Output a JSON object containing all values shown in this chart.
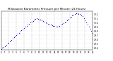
{
  "title": "Milwaukee Barometric Pressure per Minute (24 Hours)",
  "title_fontsize": 3.0,
  "background_color": "#ffffff",
  "plot_bg_color": "#ffffff",
  "dot_color": "#0000cc",
  "dot_size": 0.5,
  "grid_color": "#bbbbbb",
  "grid_dash_color": "#999999",
  "ylim": [
    29.35,
    30.28
  ],
  "xlim": [
    0,
    1440
  ],
  "yticks": [
    29.4,
    29.5,
    29.6,
    29.7,
    29.8,
    29.9,
    30.0,
    30.1,
    30.2
  ],
  "ytick_labels": [
    "29.4",
    "29.5",
    "29.6",
    "29.7",
    "29.8",
    "29.9",
    "30.0",
    "30.1",
    "30.2"
  ],
  "xtick_positions": [
    0,
    60,
    120,
    180,
    240,
    300,
    360,
    420,
    480,
    540,
    600,
    660,
    720,
    780,
    840,
    900,
    960,
    1020,
    1080,
    1140,
    1200,
    1260,
    1320,
    1380,
    1440
  ],
  "xtick_labels": [
    "0",
    "1",
    "2",
    "3",
    "4",
    "5",
    "6",
    "7",
    "8",
    "9",
    "10",
    "11",
    "12",
    "13",
    "14",
    "15",
    "16",
    "17",
    "18",
    "19",
    "20",
    "21",
    "22",
    "23",
    "24"
  ],
  "vgrid_positions": [
    120,
    240,
    360,
    480,
    600,
    720,
    840,
    960,
    1080,
    1200,
    1320
  ],
  "data_x": [
    0,
    20,
    40,
    60,
    80,
    100,
    120,
    140,
    160,
    180,
    200,
    220,
    240,
    260,
    280,
    300,
    320,
    340,
    360,
    380,
    400,
    420,
    440,
    460,
    480,
    500,
    520,
    540,
    560,
    580,
    600,
    620,
    640,
    660,
    680,
    700,
    720,
    740,
    760,
    780,
    800,
    820,
    840,
    860,
    880,
    900,
    920,
    940,
    960,
    980,
    1000,
    1020,
    1040,
    1060,
    1080,
    1100,
    1120,
    1140,
    1160,
    1180,
    1200,
    1220,
    1240,
    1260,
    1280,
    1300,
    1320,
    1340,
    1360,
    1380,
    1400,
    1420,
    1440
  ],
  "data_y": [
    29.38,
    29.4,
    29.42,
    29.44,
    29.47,
    29.5,
    29.53,
    29.56,
    29.59,
    29.62,
    29.65,
    29.68,
    29.71,
    29.74,
    29.76,
    29.79,
    29.82,
    29.85,
    29.87,
    29.9,
    29.92,
    29.95,
    29.97,
    30.0,
    30.02,
    30.04,
    30.07,
    30.09,
    30.1,
    30.09,
    30.08,
    30.07,
    30.05,
    30.04,
    30.02,
    30.0,
    29.99,
    29.97,
    29.96,
    29.95,
    29.94,
    29.93,
    29.92,
    29.91,
    29.9,
    29.91,
    29.93,
    29.95,
    29.97,
    29.99,
    30.01,
    30.03,
    30.06,
    30.09,
    30.12,
    30.14,
    30.17,
    30.19,
    30.21,
    30.22,
    30.22,
    30.21,
    30.2,
    30.18,
    30.15,
    30.11,
    30.06,
    30.01,
    29.95,
    29.9,
    29.85,
    29.8,
    29.75
  ]
}
